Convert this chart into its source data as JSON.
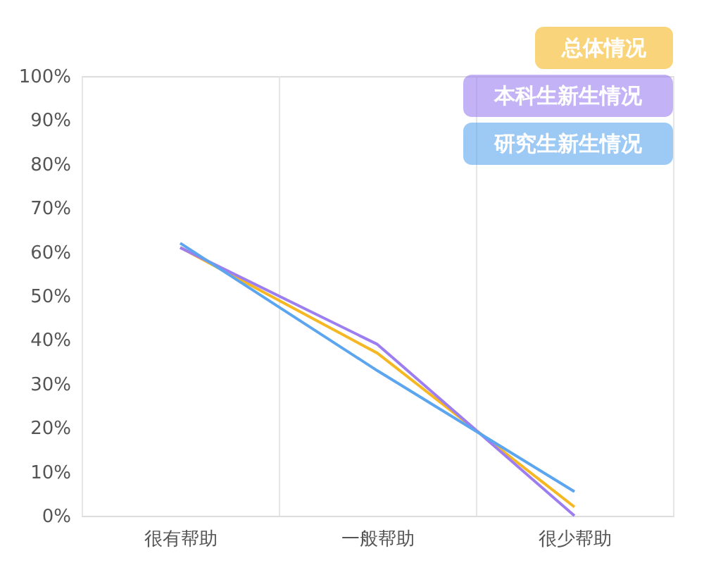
{
  "chart_data": {
    "type": "line",
    "categories": [
      "很有帮助",
      "一般帮助",
      "很少帮助"
    ],
    "series": [
      {
        "name": "总体情况",
        "color": "#f5b823",
        "values": [
          61,
          37,
          2
        ]
      },
      {
        "name": "本科生新生情况",
        "color": "#9d7ef0",
        "values": [
          61,
          39,
          0
        ]
      },
      {
        "name": "研究生新生情况",
        "color": "#5ba6ef",
        "values": [
          62,
          33,
          5.5
        ]
      }
    ],
    "ylim": [
      0,
      100
    ],
    "yticks": [
      {
        "value": 0,
        "label": "0%"
      },
      {
        "value": 10,
        "label": "10%"
      },
      {
        "value": 20,
        "label": "20%"
      },
      {
        "value": 30,
        "label": "30%"
      },
      {
        "value": 40,
        "label": "40%"
      },
      {
        "value": 50,
        "label": "50%"
      },
      {
        "value": 60,
        "label": "60%"
      },
      {
        "value": 70,
        "label": "70%"
      },
      {
        "value": 80,
        "label": "80%"
      },
      {
        "value": 90,
        "label": "90%"
      },
      {
        "value": 100,
        "label": "100%"
      }
    ],
    "grid": "x",
    "legend": "top right",
    "marker": "none",
    "line_style": "solid"
  }
}
